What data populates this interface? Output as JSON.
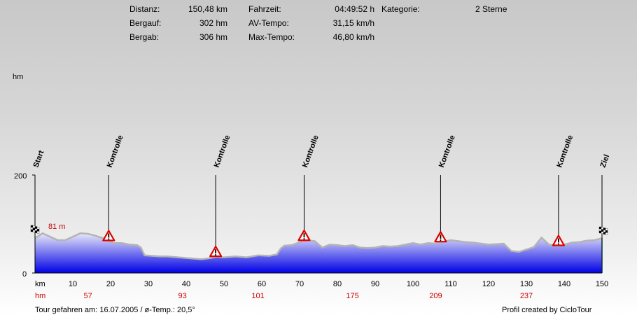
{
  "stats": {
    "distanz_label": "Distanz:",
    "distanz_value": "150,48 km",
    "bergauf_label": "Bergauf:",
    "bergauf_value": "302 hm",
    "bergab_label": "Bergab:",
    "bergab_value": "306 hm",
    "fahrzeit_label": "Fahrzeit:",
    "fahrzeit_value": "04:49:52 h",
    "avtempo_label": "AV-Tempo:",
    "avtempo_value": "31,15 km/h",
    "maxtempo_label": "Max-Tempo:",
    "maxtempo_value": "46,80 km/h",
    "kategorie_label": "Kategorie:",
    "kategorie_value": "2 Sterne"
  },
  "footer": {
    "left": "Tour gefahren am: 16.07.2005  /  ø-Temp.: 20,5°",
    "right": "Profil created by CicloTour"
  },
  "colors": {
    "fill_top": "#e8e8f8",
    "fill_bottom": "#0000e6",
    "line": "#b4b4b4",
    "hm_text": "#cc0000",
    "warning_red": "#dd0000"
  },
  "chart_data": {
    "type": "area",
    "ylabel": "hm",
    "xlabel": "km",
    "xlim": [
      0,
      150
    ],
    "ylim": [
      0,
      200
    ],
    "y_ticks": [
      "0",
      "200"
    ],
    "x_ticks": [
      10,
      20,
      30,
      40,
      50,
      60,
      70,
      80,
      90,
      100,
      110,
      120,
      130,
      140,
      150
    ],
    "x_tick_label_prefix": "km",
    "hm_row_label": "hm",
    "hm_row": [
      {
        "km": 14,
        "text": "57"
      },
      {
        "km": 39,
        "text": "93"
      },
      {
        "km": 59,
        "text": "101"
      },
      {
        "km": 84,
        "text": "175"
      },
      {
        "km": 106,
        "text": "209"
      },
      {
        "km": 130,
        "text": "237"
      }
    ],
    "start_height_label": "81 m",
    "markers": [
      {
        "km": 0,
        "label": "Start",
        "type": "flag"
      },
      {
        "km": 19.5,
        "label": "Kontrolle",
        "type": "warning"
      },
      {
        "km": 47.8,
        "label": "Kontrolle",
        "type": "warning"
      },
      {
        "km": 71.2,
        "label": "Kontrolle",
        "type": "warning"
      },
      {
        "km": 107.3,
        "label": "Kontrolle",
        "type": "warning"
      },
      {
        "km": 138.5,
        "label": "Kontrolle",
        "type": "warning"
      },
      {
        "km": 150,
        "label": "Ziel",
        "type": "flag"
      }
    ],
    "series": [
      {
        "x": [
          0,
          2,
          4,
          6,
          8,
          10,
          12,
          14,
          16,
          18,
          19.5,
          21,
          23,
          25,
          27,
          28,
          29,
          31,
          33,
          35,
          38,
          41,
          44,
          46,
          48,
          50,
          53,
          56,
          59,
          62,
          64,
          65,
          66,
          68,
          70,
          72,
          74,
          76,
          78,
          80,
          82,
          84,
          86,
          88,
          90,
          92,
          94,
          96,
          98,
          100,
          102,
          104,
          106,
          108,
          110,
          112,
          114,
          116,
          118,
          120,
          122,
          124,
          126,
          128,
          130,
          132,
          134,
          136,
          138.5,
          140,
          142,
          144,
          146,
          148,
          150
        ],
        "values": [
          71,
          81,
          74,
          67,
          67,
          74,
          81,
          80,
          76,
          71,
          65,
          61,
          61,
          58,
          57,
          52,
          36,
          35,
          34,
          34,
          32,
          30,
          28,
          30,
          33,
          32,
          34,
          32,
          36,
          35,
          38,
          50,
          56,
          57,
          63,
          67,
          65,
          52,
          58,
          57,
          55,
          57,
          52,
          51,
          52,
          55,
          54,
          55,
          58,
          61,
          58,
          61,
          60,
          64,
          67,
          65,
          63,
          62,
          60,
          58,
          59,
          60,
          45,
          43,
          48,
          53,
          72,
          58,
          55,
          58,
          62,
          63,
          66,
          67,
          71
        ]
      }
    ]
  }
}
